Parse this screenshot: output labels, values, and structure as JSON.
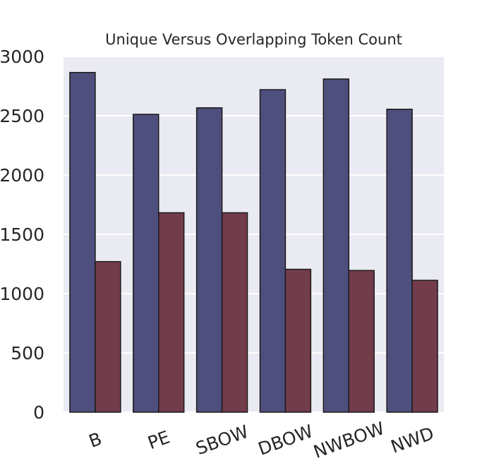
{
  "chart_data": {
    "type": "bar",
    "title": "Unique Versus Overlapping Token Count",
    "xlabel": "",
    "ylabel": "",
    "categories": [
      "B",
      "PE",
      "SBOW",
      "DBOW",
      "NWBOW",
      "NWD"
    ],
    "series": [
      {
        "color": "#4f4f7d",
        "values": [
          2865,
          2512,
          2567,
          2720,
          2810,
          2555
        ]
      },
      {
        "color": "#733c4a",
        "values": [
          1270,
          1682,
          1682,
          1205,
          1195,
          1112
        ]
      }
    ],
    "ylim": [
      0,
      3000
    ],
    "yticks": [
      "0",
      "500",
      "1000",
      "1500",
      "2000",
      "2500",
      "3000"
    ],
    "grid": true,
    "legend": "none",
    "background_color": "#eaeaf2",
    "grid_color": "#ffffff",
    "edge_color": "#1a1a1a"
  }
}
